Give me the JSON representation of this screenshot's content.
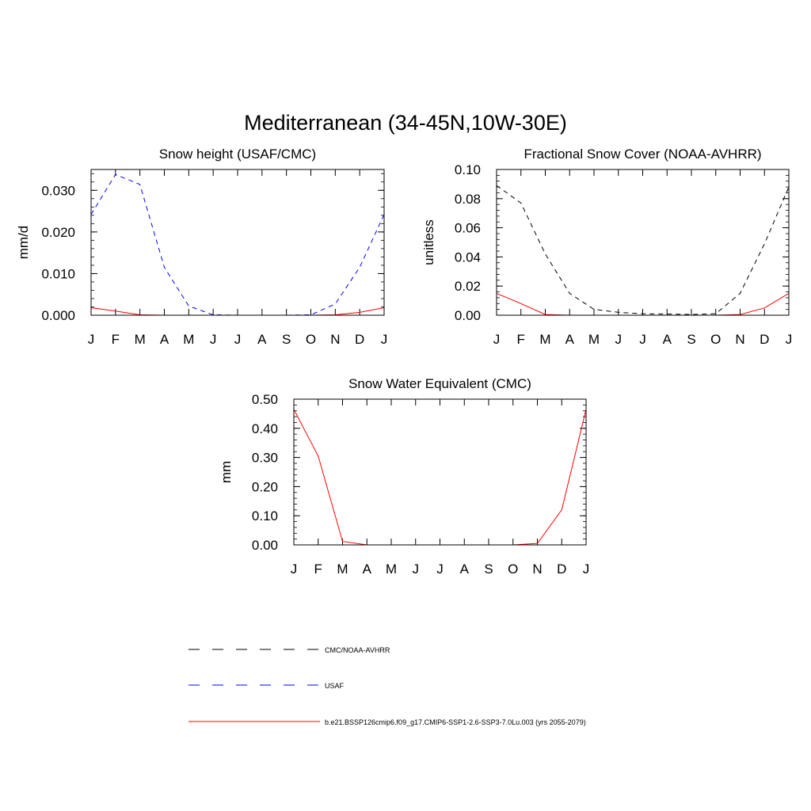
{
  "page": {
    "title": "Mediterranean (34-45N,10W-30E)"
  },
  "chart_data": [
    {
      "type": "line",
      "title": "Snow height (USAF/CMC)",
      "ylabel": "mm/d",
      "xlabel": "",
      "categories": [
        "J",
        "F",
        "M",
        "A",
        "M",
        "J",
        "J",
        "A",
        "S",
        "O",
        "N",
        "D",
        "J"
      ],
      "ylim": [
        0,
        0.035
      ],
      "yticks": [
        0.0,
        0.01,
        0.02,
        0.03
      ],
      "ytick_labels": [
        "0.000",
        "0.010",
        "0.020",
        "0.030"
      ],
      "series": [
        {
          "name": "USAF",
          "style": "dashed",
          "color": "#0000ff",
          "values": [
            0.0242,
            0.0338,
            0.0314,
            0.0115,
            0.0022,
            0.0001,
            0.0,
            0.0,
            0.0,
            0.0001,
            0.0027,
            0.0115,
            0.0242
          ]
        },
        {
          "name": "b.e21.BSSP126cmip6.f09_g17.CMIP6-SSP1-2.6-SSP3-7.0Lu.003 (yrs 2055-2079)",
          "style": "solid",
          "color": "#ff0000",
          "values": [
            0.0018,
            0.001,
            0.0001,
            0.0,
            0.0,
            0.0,
            0.0,
            0.0,
            0.0,
            0.0,
            0.0001,
            0.0007,
            0.0018
          ]
        }
      ]
    },
    {
      "type": "line",
      "title": "Fractional Snow Cover (NOAA-AVHRR)",
      "ylabel": "unitless",
      "xlabel": "",
      "categories": [
        "J",
        "F",
        "M",
        "A",
        "M",
        "J",
        "J",
        "A",
        "S",
        "O",
        "N",
        "D",
        "J"
      ],
      "ylim": [
        0,
        0.1
      ],
      "yticks": [
        0.0,
        0.02,
        0.04,
        0.06,
        0.08,
        0.1
      ],
      "ytick_labels": [
        "0.00",
        "0.02",
        "0.04",
        "0.06",
        "0.08",
        "0.10"
      ],
      "series": [
        {
          "name": "CMC/NOAA-AVHRR",
          "style": "dashed",
          "color": "#000000",
          "values": [
            0.089,
            0.077,
            0.042,
            0.015,
            0.004,
            0.002,
            0.001,
            0.0008,
            0.0005,
            0.001,
            0.015,
            0.049,
            0.088
          ]
        },
        {
          "name": "b.e21.BSSP126cmip6.f09_g17.CMIP6-SSP1-2.6-SSP3-7.0Lu.003 (yrs 2055-2079)",
          "style": "solid",
          "color": "#ff0000",
          "values": [
            0.015,
            0.008,
            0.0005,
            0.0,
            0.0,
            0.0,
            0.0,
            0.0,
            0.0,
            0.0,
            0.0005,
            0.005,
            0.015
          ]
        }
      ]
    },
    {
      "type": "line",
      "title": "Snow Water Equivalent (CMC)",
      "ylabel": "mm",
      "xlabel": "",
      "categories": [
        "J",
        "F",
        "M",
        "A",
        "M",
        "J",
        "J",
        "A",
        "S",
        "O",
        "N",
        "D",
        "J"
      ],
      "ylim": [
        0,
        0.5
      ],
      "yticks": [
        0.0,
        0.1,
        0.2,
        0.3,
        0.4,
        0.5
      ],
      "ytick_labels": [
        "0.00",
        "0.10",
        "0.20",
        "0.30",
        "0.40",
        "0.50"
      ],
      "series": [
        {
          "name": "CMC/NOAA-AVHRR",
          "style": "dashed",
          "color": "#000000",
          "values": [
            0,
            0,
            0,
            0,
            0,
            0,
            0,
            0,
            0,
            0,
            0,
            0,
            0
          ]
        },
        {
          "name": "b.e21.BSSP126cmip6.f09_g17.CMIP6-SSP1-2.6-SSP3-7.0Lu.003 (yrs 2055-2079)",
          "style": "solid",
          "color": "#ff0000",
          "values": [
            0.465,
            0.305,
            0.012,
            0.0,
            0.0,
            0.0,
            0.0,
            0.0,
            0.0,
            0.0,
            0.005,
            0.12,
            0.465
          ]
        }
      ]
    }
  ],
  "legend": {
    "placement": "bottom",
    "items": [
      {
        "label": "CMC/NOAA-AVHRR",
        "style": "dashed",
        "color": "#000000"
      },
      {
        "label": "USAF",
        "style": "dashed",
        "color": "#0000ff"
      },
      {
        "label": "b.e21.BSSP126cmip6.f09_g17.CMIP6-SSP1-2.6-SSP3-7.0Lu.003 (yrs 2055-2079)",
        "style": "solid",
        "color": "#ff0000"
      }
    ]
  }
}
